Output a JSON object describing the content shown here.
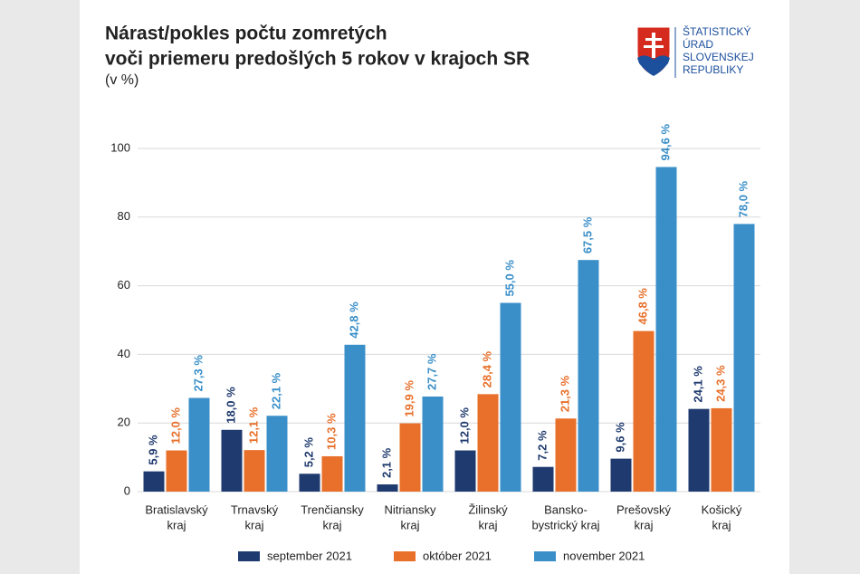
{
  "chart_data": {
    "type": "bar",
    "title": [
      "Nárast/pokles počtu zomretých",
      "voči priemeru predošlých 5 rokov v krajoch SR"
    ],
    "subtitle": "(v %)",
    "categories": [
      [
        "Bratislavský",
        "kraj"
      ],
      [
        "Trnavský",
        "kraj"
      ],
      [
        "Trenčiansky",
        "kraj"
      ],
      [
        "Nitriansky",
        "kraj"
      ],
      [
        "Žilinský",
        "kraj"
      ],
      [
        "Bansko-",
        "bystrický kraj"
      ],
      [
        "Prešovský",
        "kraj"
      ],
      [
        "Košický",
        "kraj"
      ]
    ],
    "series": [
      {
        "name": "september 2021",
        "color": "#1f3a6e",
        "values": [
          5.9,
          18.0,
          5.2,
          2.1,
          12.0,
          7.2,
          9.6,
          24.1
        ],
        "value_labels": [
          "5,9 %",
          "18,0 %",
          "5,2 %",
          "2,1 %",
          "12,0 %",
          "7,2 %",
          "9,6 %",
          "24,1 %"
        ]
      },
      {
        "name": "október 2021",
        "color": "#e8702a",
        "values": [
          12.0,
          12.1,
          10.3,
          19.9,
          28.4,
          21.3,
          46.8,
          24.3
        ],
        "value_labels": [
          "12,0 %",
          "12,1 %",
          "10,3 %",
          "19,9 %",
          "28,4 %",
          "21,3 %",
          "46,8 %",
          "24,3 %"
        ]
      },
      {
        "name": "november 2021",
        "color": "#3a8fc9",
        "values": [
          27.3,
          22.1,
          42.8,
          27.7,
          55.0,
          67.5,
          94.6,
          78.0
        ],
        "value_labels": [
          "27,3 %",
          "22,1 %",
          "42,8 %",
          "27,7 %",
          "55,0 %",
          "67,5 %",
          "94,6 %",
          "78,0 %"
        ]
      }
    ],
    "ylim": [
      0,
      100
    ],
    "yticks": [
      0,
      20,
      40,
      60,
      80,
      100
    ],
    "grid": true,
    "legend": "bottom"
  },
  "logo": [
    "ŠTATISTICKÝ",
    "ÚRAD",
    "SLOVENSKEJ",
    "REPUBLIKY"
  ]
}
